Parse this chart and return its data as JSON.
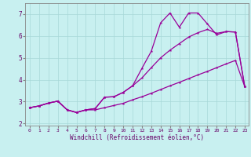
{
  "xlabel": "Windchill (Refroidissement éolien,°C)",
  "bg_color": "#c8f0f0",
  "line_color": "#990099",
  "grid_color": "#a8d8d8",
  "tick_color": "#660066",
  "spine_color": "#888888",
  "xlim_min": -0.5,
  "xlim_max": 23.4,
  "ylim_min": 1.9,
  "ylim_max": 7.5,
  "xticks": [
    0,
    1,
    2,
    3,
    4,
    5,
    6,
    7,
    8,
    9,
    10,
    11,
    12,
    13,
    14,
    15,
    16,
    17,
    18,
    19,
    20,
    21,
    22,
    23
  ],
  "yticks": [
    2,
    3,
    4,
    5,
    6,
    7
  ],
  "curve_upper_x": [
    0,
    1,
    2,
    3,
    4,
    5,
    6,
    7,
    8,
    9,
    10,
    11,
    12,
    13,
    14,
    15,
    16,
    17,
    18,
    19,
    20,
    21,
    22,
    23
  ],
  "curve_upper_y": [
    2.72,
    2.8,
    2.93,
    3.02,
    2.62,
    2.5,
    2.62,
    2.68,
    3.2,
    3.22,
    3.42,
    3.72,
    4.52,
    5.3,
    6.6,
    7.05,
    6.4,
    7.05,
    7.05,
    6.55,
    6.05,
    6.2,
    6.18,
    3.68
  ],
  "curve_mid_x": [
    0,
    1,
    2,
    3,
    4,
    5,
    6,
    7,
    8,
    9,
    10,
    11,
    12,
    13,
    14,
    15,
    16,
    17,
    18,
    19,
    20,
    21,
    22,
    23
  ],
  "curve_mid_y": [
    2.72,
    2.8,
    2.93,
    3.02,
    2.62,
    2.5,
    2.62,
    2.68,
    3.2,
    3.22,
    3.42,
    3.72,
    4.08,
    4.55,
    5.0,
    5.35,
    5.65,
    5.95,
    6.15,
    6.3,
    6.12,
    6.2,
    6.18,
    3.68
  ],
  "curve_low_x": [
    0,
    1,
    2,
    3,
    4,
    5,
    6,
    7,
    8,
    9,
    10,
    11,
    12,
    13,
    14,
    15,
    16,
    17,
    18,
    19,
    20,
    21,
    22,
    23
  ],
  "curve_low_y": [
    2.72,
    2.8,
    2.93,
    3.02,
    2.62,
    2.5,
    2.62,
    2.62,
    2.72,
    2.82,
    2.92,
    3.08,
    3.22,
    3.38,
    3.55,
    3.72,
    3.88,
    4.05,
    4.22,
    4.38,
    4.55,
    4.72,
    4.88,
    3.68
  ]
}
